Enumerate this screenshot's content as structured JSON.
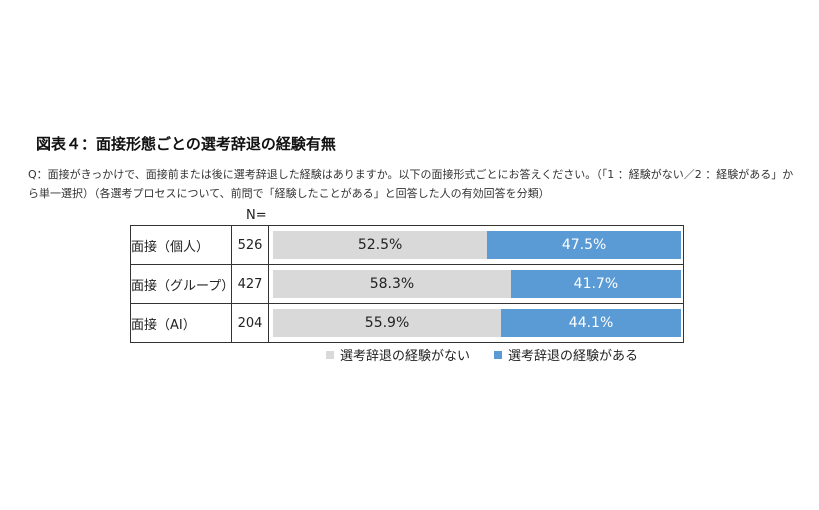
{
  "figure": {
    "title": "図表４：面接形態ごとの選考辞退の経験有無",
    "question": "Q：面接がきっかけで、面接前または後に選考辞退した経験はありますか。以下の面接形式ごとにお答えください。（「1 ：経験がない／2 ：経験がある」から単一選択）（各選考プロセスについて、前問で「経験したことがある」と回答した人の有効回答を分類）",
    "n_header": "N="
  },
  "chart_data": {
    "type": "bar",
    "orientation": "horizontal-stacked-100",
    "categories": [
      "面接（個人）",
      "面接（グループ）",
      "面接（AI）"
    ],
    "n": [
      "526",
      "427",
      "204"
    ],
    "series": [
      {
        "name": "選考辞退の経験がない",
        "color": "#d9d9d9",
        "values": [
          52.5,
          58.3,
          55.9
        ],
        "labels": [
          "52.5%",
          "58.3%",
          "55.9%"
        ]
      },
      {
        "name": "選考辞退の経験がある",
        "color": "#5b9bd5",
        "values": [
          47.5,
          41.7,
          44.1
        ],
        "labels": [
          "47.5%",
          "41.7%",
          "44.1%"
        ]
      }
    ],
    "xlim": [
      0,
      100
    ],
    "legend_position": "bottom"
  }
}
